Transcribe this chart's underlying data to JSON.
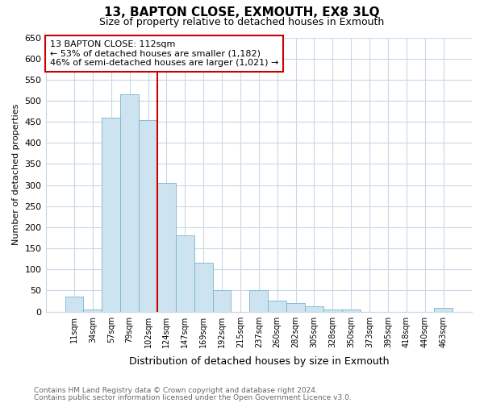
{
  "title": "13, BAPTON CLOSE, EXMOUTH, EX8 3LQ",
  "subtitle": "Size of property relative to detached houses in Exmouth",
  "xlabel": "Distribution of detached houses by size in Exmouth",
  "ylabel": "Number of detached properties",
  "bin_labels": [
    "11sqm",
    "34sqm",
    "57sqm",
    "79sqm",
    "102sqm",
    "124sqm",
    "147sqm",
    "169sqm",
    "192sqm",
    "215sqm",
    "237sqm",
    "260sqm",
    "282sqm",
    "305sqm",
    "328sqm",
    "350sqm",
    "373sqm",
    "395sqm",
    "418sqm",
    "440sqm",
    "463sqm"
  ],
  "bar_heights": [
    35,
    5,
    460,
    515,
    455,
    305,
    180,
    115,
    50,
    0,
    50,
    27,
    20,
    13,
    5,
    5,
    0,
    0,
    0,
    0,
    8
  ],
  "bar_color": "#cde4f0",
  "bar_edgecolor": "#7ab4d0",
  "vline_color": "#cc0000",
  "vline_x_index": 4,
  "ylim": [
    0,
    650
  ],
  "yticks": [
    0,
    50,
    100,
    150,
    200,
    250,
    300,
    350,
    400,
    450,
    500,
    550,
    600,
    650
  ],
  "annotation_title": "13 BAPTON CLOSE: 112sqm",
  "annotation_line1": "← 53% of detached houses are smaller (1,182)",
  "annotation_line2": "46% of semi-detached houses are larger (1,021) →",
  "annotation_box_facecolor": "white",
  "annotation_box_edgecolor": "#cc0000",
  "grid_color": "#c8d8e8",
  "bg_color": "white",
  "footer_line1": "Contains HM Land Registry data © Crown copyright and database right 2024.",
  "footer_line2": "Contains public sector information licensed under the Open Government Licence v3.0."
}
